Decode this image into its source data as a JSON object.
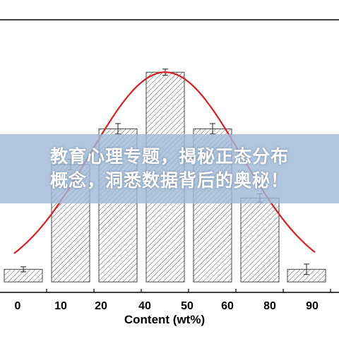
{
  "chart_data": {
    "type": "bar",
    "categories": [
      "0",
      "10",
      "20",
      "40",
      "50",
      "60",
      "80",
      "90"
    ],
    "values": [
      6,
      56,
      73,
      100,
      73,
      40,
      6,
      6
    ],
    "errors": [
      1.2,
      2.5,
      2.5,
      1.5,
      2.5,
      2.0,
      2.0,
      2.5
    ],
    "xlabel": "Content (wt%)",
    "ylabel": "",
    "ylim": [
      -5,
      125
    ],
    "fit_curve": {
      "type": "gaussian",
      "peak": 100,
      "center_index": 3.0,
      "sigma": 1.6,
      "baseline": 0
    }
  },
  "banner": {
    "line1": "教育心理专题，揭秘正态分布",
    "line2": "概念，洞悉数据背后的奥秘！"
  },
  "colors": {
    "bar_fill": "#ffffff",
    "bar_stroke": "#444444",
    "hatch": "#555555",
    "curve": "#d42020",
    "axis": "#000000",
    "banner": "#a0b9d7"
  }
}
